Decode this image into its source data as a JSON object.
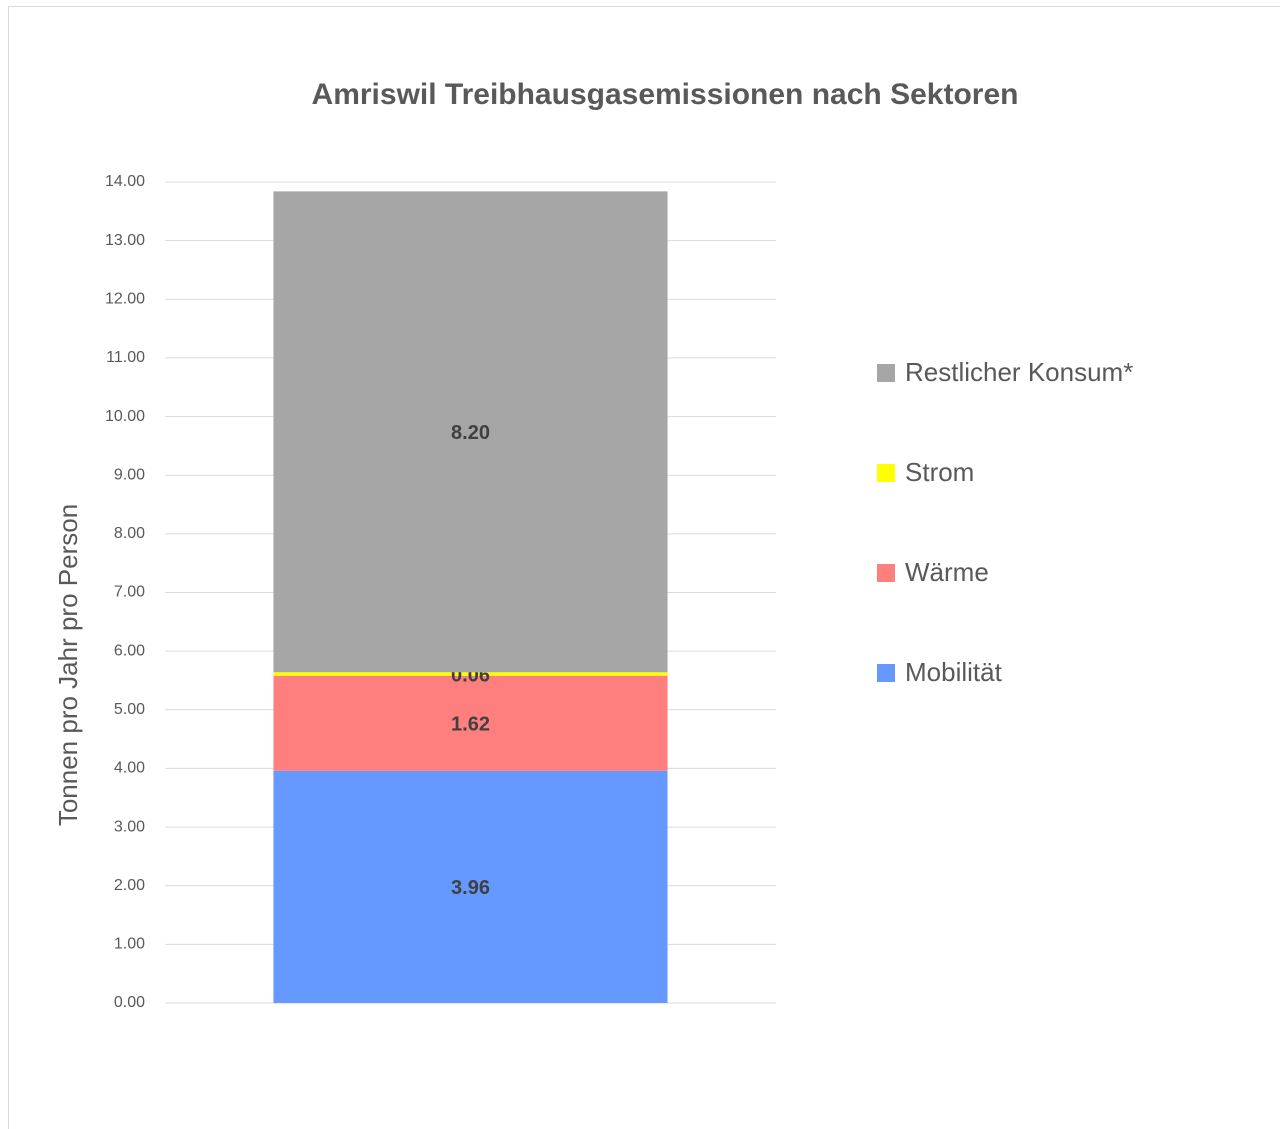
{
  "chart_data": {
    "type": "stacked_bar",
    "title": "Amriswil Treibhausgasemissionen nach Sektoren",
    "y_label": "Tonnen pro Jahr pro Person",
    "categories": [
      null
    ],
    "series": [
      {
        "name": "Mobilität",
        "color": "#6699ff",
        "values": [
          3.96
        ],
        "value_labels": [
          "3.96"
        ]
      },
      {
        "name": "Wärme",
        "color": "#ff7f7f",
        "values": [
          1.62
        ],
        "value_labels": [
          "1.62"
        ]
      },
      {
        "name": "Strom",
        "color": "#ffff00",
        "values": [
          0.06
        ],
        "value_labels": [
          "0.06"
        ]
      },
      {
        "name": "Restlicher Konsum*",
        "color": "#a6a6a6",
        "values": [
          8.2
        ],
        "value_labels": [
          "8.20"
        ]
      }
    ],
    "ylim": [
      0,
      14
    ],
    "yticks": [
      {
        "value": 0,
        "label": "0.00"
      },
      {
        "value": 1,
        "label": "1.00"
      },
      {
        "value": 2,
        "label": "2.00"
      },
      {
        "value": 3,
        "label": "3.00"
      },
      {
        "value": 4,
        "label": "4.00"
      },
      {
        "value": 5,
        "label": "5.00"
      },
      {
        "value": 6,
        "label": "6.00"
      },
      {
        "value": 7,
        "label": "7.00"
      },
      {
        "value": 8,
        "label": "8.00"
      },
      {
        "value": 9,
        "label": "9.00"
      },
      {
        "value": 10,
        "label": "10.00"
      },
      {
        "value": 11,
        "label": "11.00"
      },
      {
        "value": 12,
        "label": "12.00"
      },
      {
        "value": 13,
        "label": "13.00"
      },
      {
        "value": 14,
        "label": "14.00"
      }
    ],
    "grid": true,
    "legend": "right"
  }
}
